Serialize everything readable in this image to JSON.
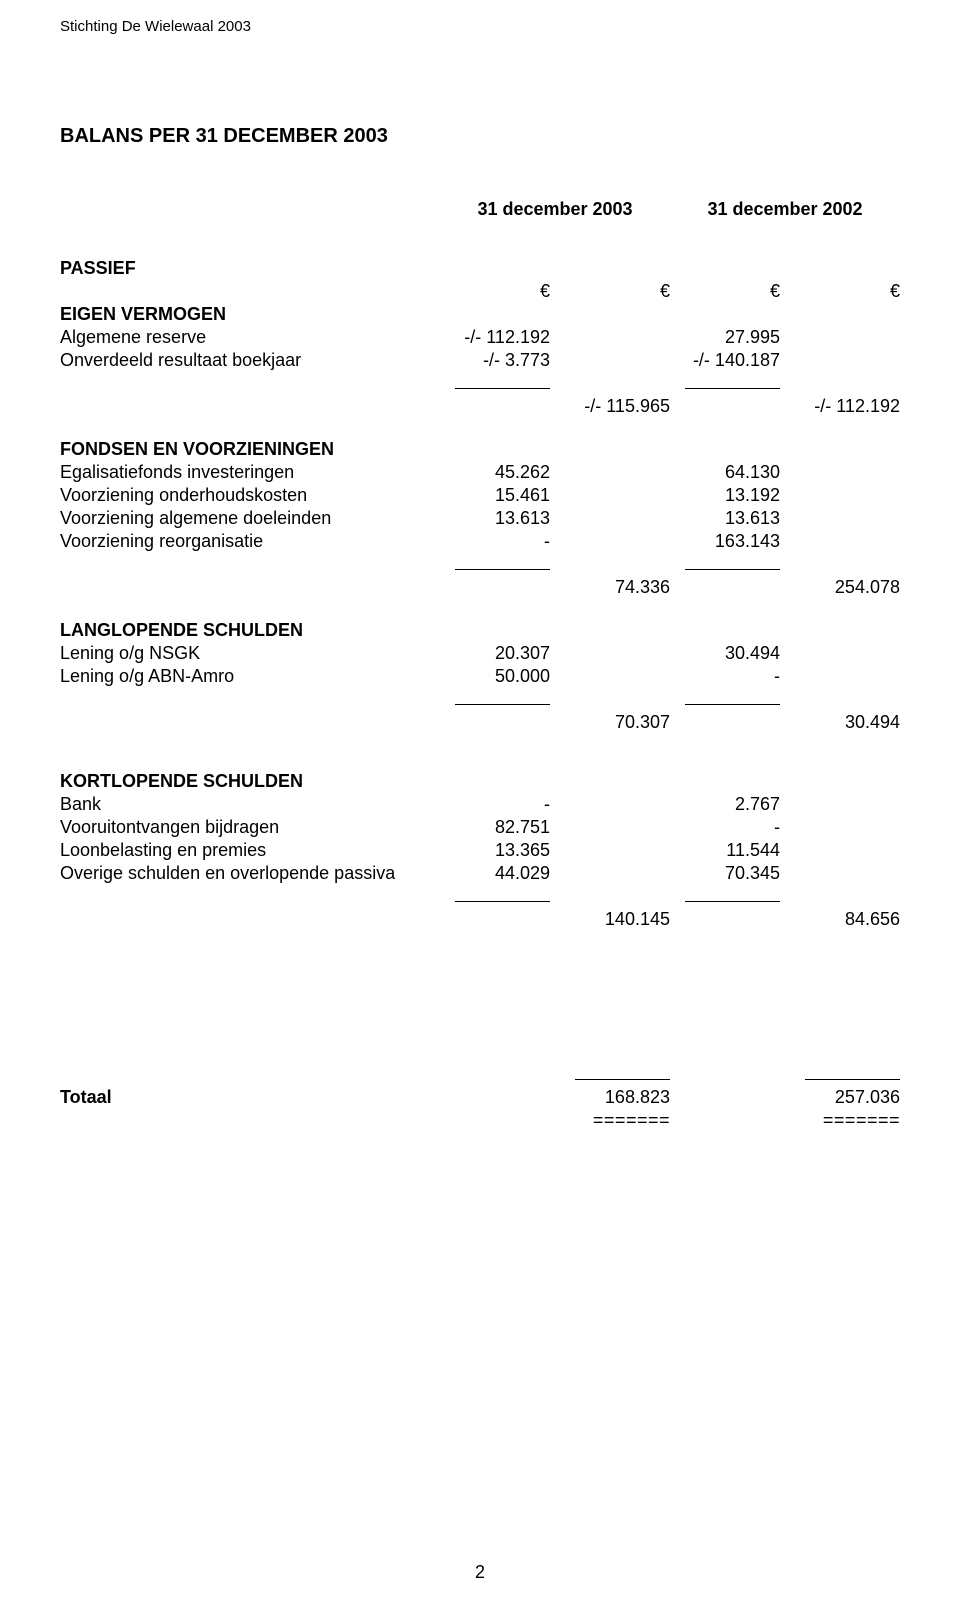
{
  "header": "Stichting De Wielewaal 2003",
  "title": "BALANS PER 31 DECEMBER 2003",
  "col_headers": {
    "y1": "31 december 2003",
    "y2": "31 december 2002"
  },
  "passief": "PASSIEF",
  "euro": "€",
  "eigen_vermogen": {
    "title": "EIGEN VERMOGEN",
    "rows": [
      {
        "label": "Algemene reserve",
        "c1": "-/- 112.192",
        "c3": "27.995"
      },
      {
        "label": "Onverdeeld resultaat boekjaar",
        "c1": "-/- 3.773",
        "c3": "-/- 140.187"
      }
    ],
    "subtotal": {
      "c2": "-/- 115.965",
      "c4": "-/- 112.192"
    }
  },
  "fondsen": {
    "title": "FONDSEN EN VOORZIENINGEN",
    "rows": [
      {
        "label": "Egalisatiefonds investeringen",
        "c1": "45.262",
        "c3": "64.130"
      },
      {
        "label": "Voorziening onderhoudskosten",
        "c1": "15.461",
        "c3": "13.192"
      },
      {
        "label": "Voorziening algemene doeleinden",
        "c1": "13.613",
        "c3": "13.613"
      },
      {
        "label": "Voorziening reorganisatie",
        "c1": "-",
        "c3": "163.143"
      }
    ],
    "subtotal": {
      "c2": "74.336",
      "c4": "254.078"
    }
  },
  "langlopend": {
    "title": "LANGLOPENDE SCHULDEN",
    "rows": [
      {
        "label": "Lening o/g NSGK",
        "c1": "20.307",
        "c3": "30.494"
      },
      {
        "label": "Lening o/g ABN-Amro",
        "c1": "50.000",
        "c3": "-"
      }
    ],
    "subtotal": {
      "c2": "70.307",
      "c4": "30.494"
    }
  },
  "kortlopend": {
    "title": "KORTLOPENDE SCHULDEN",
    "rows": [
      {
        "label": "Bank",
        "c1": "-",
        "c3": "2.767"
      },
      {
        "label": "Vooruitontvangen bijdragen",
        "c1": "82.751",
        "c3": "-"
      },
      {
        "label": "Loonbelasting en premies",
        "c1": "13.365",
        "c3": "11.544"
      },
      {
        "label": "Overige schulden en overlopende passiva",
        "c1": "44.029",
        "c3": "70.345"
      }
    ],
    "subtotal": {
      "c2": "140.145",
      "c4": "84.656"
    }
  },
  "totaal": {
    "label": "Totaal",
    "c2": "168.823",
    "c4": "257.036"
  },
  "double_rule": "=======",
  "page_number": "2"
}
